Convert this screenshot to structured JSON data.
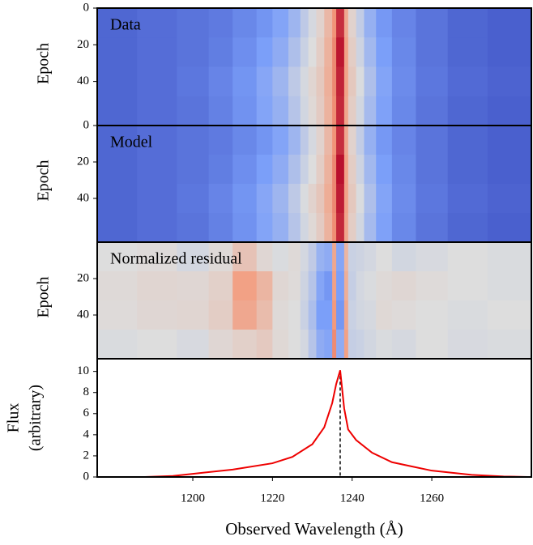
{
  "chart_data": [
    {
      "type": "heatmap",
      "title": "Data",
      "title_color": "#ffffff",
      "ylabel": "Epoch",
      "xlim": [
        1176,
        1285
      ],
      "ylim": [
        0,
        64
      ],
      "yticks": [
        0,
        20,
        40
      ],
      "x_edges": [
        1176,
        1186,
        1196,
        1204,
        1210,
        1216,
        1220,
        1224,
        1227,
        1229,
        1231,
        1233,
        1235,
        1236,
        1238,
        1239,
        1241,
        1243,
        1246,
        1250,
        1256,
        1264,
        1274,
        1285
      ],
      "y_edges": [
        0,
        16,
        32,
        48,
        64
      ],
      "zlim": [
        0,
        1
      ],
      "colorscale": [
        "#3b4cc0",
        "#7b9ff9",
        "#dddddd",
        "#f49a7b",
        "#b40426"
      ],
      "z": [
        [
          0.08,
          0.1,
          0.12,
          0.14,
          0.18,
          0.22,
          0.27,
          0.34,
          0.42,
          0.48,
          0.54,
          0.64,
          0.76,
          0.93,
          0.7,
          0.54,
          0.43,
          0.32,
          0.23,
          0.17,
          0.12,
          0.08,
          0.06
        ],
        [
          0.08,
          0.1,
          0.12,
          0.15,
          0.2,
          0.25,
          0.3,
          0.38,
          0.45,
          0.5,
          0.56,
          0.66,
          0.78,
          0.97,
          0.72,
          0.56,
          0.46,
          0.35,
          0.25,
          0.18,
          0.12,
          0.08,
          0.06
        ],
        [
          0.08,
          0.1,
          0.13,
          0.17,
          0.22,
          0.28,
          0.34,
          0.42,
          0.48,
          0.53,
          0.58,
          0.67,
          0.78,
          0.95,
          0.72,
          0.58,
          0.49,
          0.38,
          0.27,
          0.19,
          0.13,
          0.09,
          0.07
        ],
        [
          0.08,
          0.1,
          0.12,
          0.16,
          0.21,
          0.27,
          0.32,
          0.4,
          0.47,
          0.52,
          0.57,
          0.66,
          0.77,
          0.94,
          0.71,
          0.56,
          0.47,
          0.36,
          0.26,
          0.18,
          0.12,
          0.08,
          0.06
        ]
      ]
    },
    {
      "type": "heatmap",
      "title": "Model",
      "title_color": "#ffffff",
      "ylabel": "Epoch",
      "xlim": [
        1176,
        1285
      ],
      "ylim": [
        0,
        64
      ],
      "yticks": [
        0,
        20,
        40
      ],
      "x_edges": [
        1176,
        1186,
        1196,
        1204,
        1210,
        1216,
        1220,
        1224,
        1227,
        1229,
        1231,
        1233,
        1235,
        1236,
        1238,
        1239,
        1241,
        1243,
        1246,
        1250,
        1256,
        1264,
        1274,
        1285
      ],
      "y_edges": [
        0,
        16,
        32,
        48,
        64
      ],
      "zlim": [
        0,
        1
      ],
      "colorscale": [
        "#3b4cc0",
        "#7b9ff9",
        "#dddddd",
        "#f49a7b",
        "#b40426"
      ],
      "z": [
        [
          0.08,
          0.1,
          0.12,
          0.14,
          0.18,
          0.22,
          0.27,
          0.34,
          0.42,
          0.48,
          0.54,
          0.64,
          0.76,
          0.93,
          0.7,
          0.54,
          0.43,
          0.32,
          0.23,
          0.17,
          0.12,
          0.08,
          0.06
        ],
        [
          0.08,
          0.1,
          0.12,
          0.15,
          0.2,
          0.25,
          0.3,
          0.38,
          0.45,
          0.5,
          0.56,
          0.66,
          0.78,
          0.98,
          0.72,
          0.56,
          0.46,
          0.35,
          0.25,
          0.18,
          0.12,
          0.08,
          0.06
        ],
        [
          0.08,
          0.1,
          0.13,
          0.17,
          0.22,
          0.28,
          0.34,
          0.42,
          0.49,
          0.54,
          0.59,
          0.68,
          0.78,
          0.96,
          0.72,
          0.58,
          0.49,
          0.38,
          0.27,
          0.19,
          0.13,
          0.09,
          0.07
        ],
        [
          0.08,
          0.1,
          0.12,
          0.16,
          0.21,
          0.27,
          0.32,
          0.4,
          0.47,
          0.52,
          0.57,
          0.66,
          0.77,
          0.94,
          0.71,
          0.56,
          0.47,
          0.36,
          0.26,
          0.18,
          0.12,
          0.08,
          0.06
        ]
      ]
    },
    {
      "type": "heatmap",
      "title": "Normalized residual",
      "title_color": "#000000",
      "ylabel": "Epoch",
      "xlim": [
        1176,
        1285
      ],
      "ylim": [
        0,
        64
      ],
      "yticks": [
        20,
        40
      ],
      "x_edges": [
        1176,
        1186,
        1196,
        1204,
        1210,
        1216,
        1220,
        1224,
        1227,
        1229,
        1231,
        1233,
        1235,
        1236,
        1238,
        1239,
        1241,
        1243,
        1246,
        1250,
        1256,
        1264,
        1274,
        1285
      ],
      "y_edges": [
        0,
        16,
        32,
        48,
        64
      ],
      "zlim": [
        -1,
        1
      ],
      "colorscale": [
        "#3b4cc0",
        "#7b9ff9",
        "#dddddd",
        "#f49a7b",
        "#b40426"
      ],
      "z": [
        [
          0.0,
          0.02,
          -0.05,
          0.03,
          0.2,
          0.05,
          -0.02,
          0.03,
          -0.05,
          -0.15,
          -0.35,
          -0.4,
          0.4,
          -0.45,
          0.3,
          -0.1,
          -0.08,
          -0.05,
          0.0,
          -0.06,
          -0.03,
          0.0,
          -0.02
        ],
        [
          0.03,
          0.06,
          0.05,
          0.1,
          0.45,
          0.3,
          0.05,
          0.02,
          -0.08,
          -0.2,
          -0.45,
          -0.55,
          0.45,
          -0.5,
          0.35,
          -0.12,
          -0.05,
          -0.02,
          0.03,
          0.05,
          0.02,
          0.0,
          -0.02
        ],
        [
          0.02,
          0.05,
          0.06,
          0.12,
          0.4,
          0.25,
          0.03,
          0.0,
          -0.1,
          -0.25,
          -0.5,
          -0.5,
          0.5,
          -0.55,
          0.4,
          -0.1,
          -0.06,
          -0.04,
          0.04,
          0.02,
          0.0,
          -0.02,
          0.0
        ],
        [
          -0.02,
          0.0,
          -0.03,
          0.05,
          0.1,
          0.15,
          0.04,
          0.0,
          -0.05,
          -0.2,
          -0.4,
          -0.45,
          0.55,
          -0.4,
          0.45,
          -0.12,
          -0.1,
          -0.06,
          -0.02,
          -0.04,
          0.0,
          -0.03,
          -0.02
        ]
      ]
    },
    {
      "type": "line",
      "ylabel": [
        "Flux",
        "(arbitrary)"
      ],
      "xlabel": "Observed Wavelength (Å)",
      "xlim": [
        1176,
        1285
      ],
      "ylim": [
        0,
        11.2
      ],
      "xticks": [
        1200,
        1220,
        1240,
        1260
      ],
      "yticks": [
        0,
        2,
        4,
        6,
        8,
        10
      ],
      "vline": 1237,
      "series": [
        {
          "color": "#ee0000",
          "x": [
            1188,
            1195,
            1200,
            1210,
            1220,
            1225,
            1230,
            1233,
            1235,
            1236,
            1237,
            1238,
            1239,
            1241,
            1245,
            1250,
            1255,
            1260,
            1270,
            1278,
            1284
          ],
          "values": [
            0,
            0.1,
            0.3,
            0.7,
            1.3,
            1.9,
            3.1,
            4.7,
            7,
            8.8,
            10.1,
            6.5,
            4.5,
            3.5,
            2.3,
            1.4,
            1.0,
            0.6,
            0.2,
            0.05,
            0
          ]
        }
      ]
    }
  ]
}
